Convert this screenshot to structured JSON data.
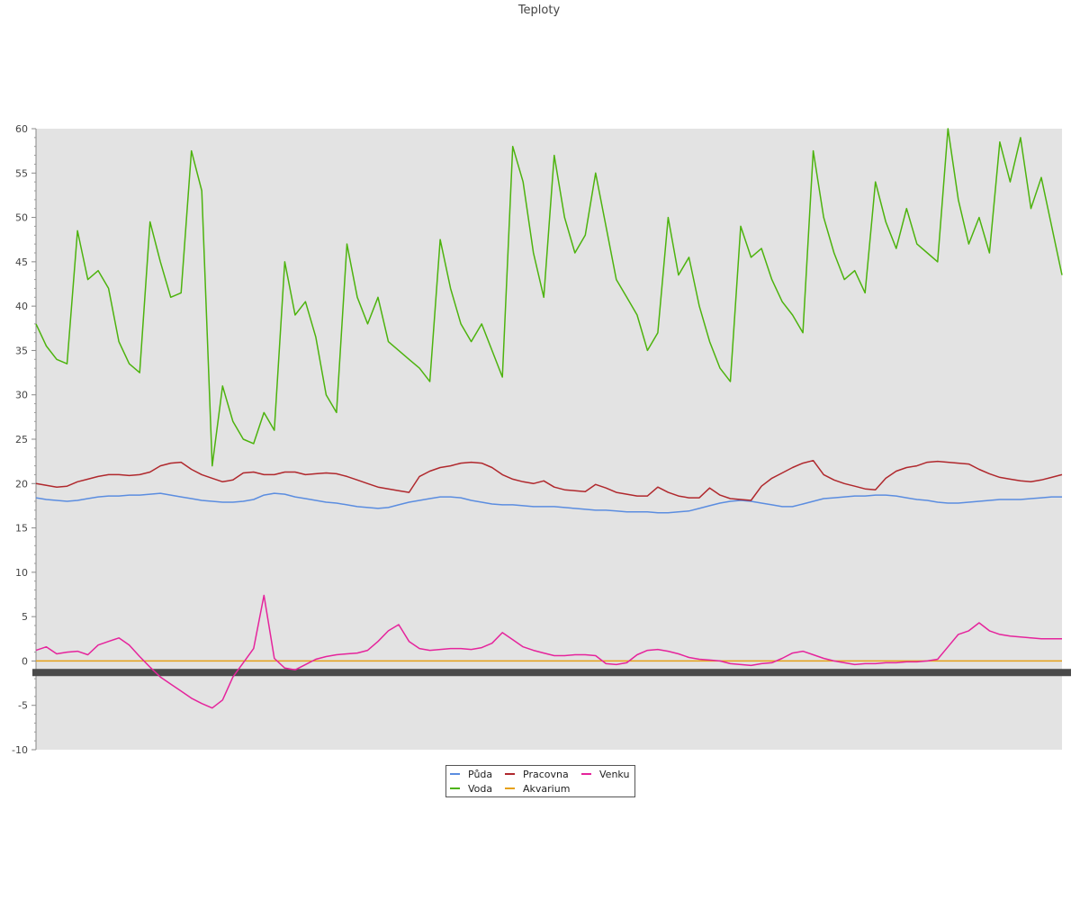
{
  "chart_data": {
    "type": "line",
    "title": "Teploty",
    "xlabel": "",
    "ylabel": "",
    "ylim": [
      -10,
      60
    ],
    "yticks": [
      -10,
      -5,
      0,
      5,
      10,
      15,
      20,
      25,
      30,
      35,
      40,
      45,
      50,
      55,
      60
    ],
    "x_points": 100,
    "grid": false,
    "legend": "bottom-center",
    "plot_background": "#e3e3e3",
    "series": [
      {
        "name": "Půda",
        "color": "#5b8de0",
        "values": [
          18.4,
          18.2,
          18.1,
          18.0,
          18.1,
          18.3,
          18.5,
          18.6,
          18.6,
          18.7,
          18.7,
          18.8,
          18.9,
          18.7,
          18.5,
          18.3,
          18.1,
          18.0,
          17.9,
          17.9,
          18.0,
          18.2,
          18.7,
          18.9,
          18.8,
          18.5,
          18.3,
          18.1,
          17.9,
          17.8,
          17.6,
          17.4,
          17.3,
          17.2,
          17.3,
          17.6,
          17.9,
          18.1,
          18.3,
          18.5,
          18.5,
          18.4,
          18.1,
          17.9,
          17.7,
          17.6,
          17.6,
          17.5,
          17.4,
          17.4,
          17.4,
          17.3,
          17.2,
          17.1,
          17.0,
          17.0,
          16.9,
          16.8,
          16.8,
          16.8,
          16.7,
          16.7,
          16.8,
          16.9,
          17.2,
          17.5,
          17.8,
          18.0,
          18.1,
          18.0,
          17.8,
          17.6,
          17.4,
          17.4,
          17.7,
          18.0,
          18.3,
          18.4,
          18.5,
          18.6,
          18.6,
          18.7,
          18.7,
          18.6,
          18.4,
          18.2,
          18.1,
          17.9,
          17.8,
          17.8,
          17.9,
          18.0,
          18.1,
          18.2,
          18.2,
          18.2,
          18.3,
          18.4,
          18.5,
          18.5
        ]
      },
      {
        "name": "Pracovna",
        "color": "#b0282d",
        "values": [
          20.0,
          19.8,
          19.6,
          19.7,
          20.2,
          20.5,
          20.8,
          21.0,
          21.0,
          20.9,
          21.0,
          21.3,
          22.0,
          22.3,
          22.4,
          21.6,
          21.0,
          20.6,
          20.2,
          20.4,
          21.2,
          21.3,
          21.0,
          21.0,
          21.3,
          21.3,
          21.0,
          21.1,
          21.2,
          21.1,
          20.8,
          20.4,
          20.0,
          19.6,
          19.4,
          19.2,
          19.0,
          20.8,
          21.4,
          21.8,
          22.0,
          22.3,
          22.4,
          22.3,
          21.8,
          21.0,
          20.5,
          20.2,
          20.0,
          20.3,
          19.6,
          19.3,
          19.2,
          19.1,
          19.9,
          19.5,
          19.0,
          18.8,
          18.6,
          18.6,
          19.6,
          19.0,
          18.6,
          18.4,
          18.4,
          19.5,
          18.7,
          18.3,
          18.2,
          18.1,
          19.7,
          20.6,
          21.2,
          21.8,
          22.3,
          22.6,
          21.0,
          20.4,
          20.0,
          19.7,
          19.4,
          19.3,
          20.6,
          21.4,
          21.8,
          22.0,
          22.4,
          22.5,
          22.4,
          22.3,
          22.2,
          21.6,
          21.1,
          20.7,
          20.5,
          20.3,
          20.2,
          20.4,
          20.7,
          21.0
        ]
      },
      {
        "name": "Venku",
        "color": "#e5249c",
        "values": [
          1.2,
          1.6,
          0.8,
          1.0,
          1.1,
          0.7,
          1.8,
          2.2,
          2.6,
          1.8,
          0.5,
          -0.7,
          -1.8,
          -2.6,
          -3.4,
          -4.2,
          -4.8,
          -5.3,
          -4.4,
          -1.8,
          -0.2,
          1.4,
          7.4,
          0.3,
          -0.8,
          -1.0,
          -0.4,
          0.2,
          0.5,
          0.7,
          0.8,
          0.9,
          1.2,
          2.2,
          3.4,
          4.1,
          2.2,
          1.4,
          1.2,
          1.3,
          1.4,
          1.4,
          1.3,
          1.5,
          2.0,
          3.2,
          2.4,
          1.6,
          1.2,
          0.9,
          0.6,
          0.6,
          0.7,
          0.7,
          0.6,
          -0.3,
          -0.4,
          -0.2,
          0.7,
          1.2,
          1.3,
          1.1,
          0.8,
          0.4,
          0.2,
          0.1,
          0.0,
          -0.3,
          -0.4,
          -0.5,
          -0.3,
          -0.2,
          0.3,
          0.9,
          1.1,
          0.7,
          0.3,
          0.0,
          -0.2,
          -0.4,
          -0.3,
          -0.3,
          -0.2,
          -0.2,
          -0.1,
          -0.1,
          0.0,
          0.2,
          1.6,
          3.0,
          3.4,
          4.3,
          3.4,
          3.0,
          2.8,
          2.7,
          2.6,
          2.5,
          2.5,
          2.5
        ]
      },
      {
        "name": "Voda",
        "color": "#4db30e",
        "values": [
          38.0,
          35.5,
          34.0,
          33.5,
          48.5,
          43.0,
          44.0,
          42.0,
          36.0,
          33.5,
          32.5,
          49.5,
          45.0,
          41.0,
          41.5,
          57.5,
          53.0,
          22.0,
          31.0,
          27.0,
          25.0,
          24.5,
          28.0,
          26.0,
          45.0,
          39.0,
          40.5,
          36.5,
          30.0,
          28.0,
          47.0,
          41.0,
          38.0,
          41.0,
          36.0,
          35.0,
          34.0,
          33.0,
          31.5,
          47.5,
          42.0,
          38.0,
          36.0,
          38.0,
          35.0,
          32.0,
          58.0,
          54.0,
          46.0,
          41.0,
          57.0,
          50.0,
          46.0,
          48.0,
          55.0,
          49.0,
          43.0,
          41.0,
          39.0,
          35.0,
          37.0,
          50.0,
          43.5,
          45.5,
          40.0,
          36.0,
          33.0,
          31.5,
          49.0,
          45.5,
          46.5,
          43.0,
          40.5,
          39.0,
          37.0,
          57.5,
          50.0,
          46.0,
          43.0,
          44.0,
          41.5,
          54.0,
          49.5,
          46.5,
          51.0,
          47.0,
          46.0,
          45.0,
          60.0,
          52.0,
          47.0,
          50.0,
          46.0,
          58.5,
          54.0,
          59.0,
          51.0,
          54.5,
          49.0,
          43.5
        ]
      },
      {
        "name": "Akvarium",
        "color": "#e6a117",
        "values": [
          0,
          0,
          0,
          0,
          0,
          0,
          0,
          0,
          0,
          0,
          0,
          0,
          0,
          0,
          0,
          0,
          0,
          0,
          0,
          0,
          0,
          0,
          0,
          0,
          0,
          0,
          0,
          0,
          0,
          0,
          0,
          0,
          0,
          0,
          0,
          0,
          0,
          0,
          0,
          0,
          0,
          0,
          0,
          0,
          0,
          0,
          0,
          0,
          0,
          0,
          0,
          0,
          0,
          0,
          0,
          0,
          0,
          0,
          0,
          0,
          0,
          0,
          0,
          0,
          0,
          0,
          0,
          0,
          0,
          0,
          0,
          0,
          0,
          0,
          0,
          0,
          0,
          0,
          0,
          0,
          0,
          0,
          0,
          0,
          0,
          0,
          0,
          0,
          0,
          0,
          0,
          0,
          0,
          0,
          0,
          0,
          0,
          0,
          0,
          0
        ]
      }
    ],
    "legend_entries": [
      {
        "label": "Půda",
        "color": "#5b8de0"
      },
      {
        "label": "Pracovna",
        "color": "#b0282d"
      },
      {
        "label": "Venku",
        "color": "#e5249c"
      },
      {
        "label": "Voda",
        "color": "#4db30e"
      },
      {
        "label": "Akvarium",
        "color": "#e6a117"
      }
    ]
  }
}
